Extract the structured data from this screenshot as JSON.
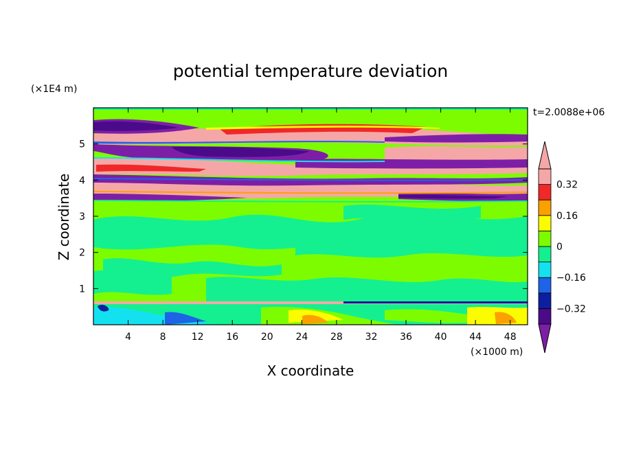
{
  "chart_data": {
    "type": "heatmap",
    "title": "potential temperature deviation",
    "time_label": "t=2.0088e+06",
    "xlabel": "X coordinate",
    "ylabel": "Z coordinate",
    "x_unit_label": "(×1000 m)",
    "y_unit_label": "(×1E4 m)",
    "xlim": [
      0,
      50
    ],
    "ylim": [
      0,
      6
    ],
    "x_ticks": [
      4,
      8,
      12,
      16,
      20,
      24,
      28,
      32,
      36,
      40,
      44,
      48
    ],
    "y_ticks": [
      1,
      2,
      3,
      4,
      5
    ],
    "colorbar": {
      "levels": [
        -0.4,
        -0.32,
        -0.24,
        -0.16,
        -0.08,
        0,
        0.08,
        0.16,
        0.24,
        0.32,
        0.4
      ],
      "labels": [
        "0.32",
        "0.16",
        "0",
        "−0.16",
        "−0.32"
      ],
      "label_values": [
        0.32,
        0.16,
        0,
        -0.16,
        -0.32
      ],
      "extend": "both",
      "colors": [
        "#7d1fa6",
        "#4b0a8a",
        "#0c1fa0",
        "#1e64e6",
        "#14e1f0",
        "#14f090",
        "#7dfc00",
        "#fcfc00",
        "#fca000",
        "#f02828",
        "#f5a7a7"
      ]
    },
    "field_bands": [
      {
        "z": [
          0.0,
          0.6
        ],
        "value": "mixed -0.2 to 0.3"
      },
      {
        "z": [
          0.6,
          3.5
        ],
        "value": "-0.08 to 0.08"
      },
      {
        "z": [
          3.5,
          5.6
        ],
        "value": "alternating layers, below -0.4 and above 0.4"
      },
      {
        "z": [
          5.6,
          6.0
        ],
        "value": "-0.08 to 0.08"
      }
    ]
  }
}
